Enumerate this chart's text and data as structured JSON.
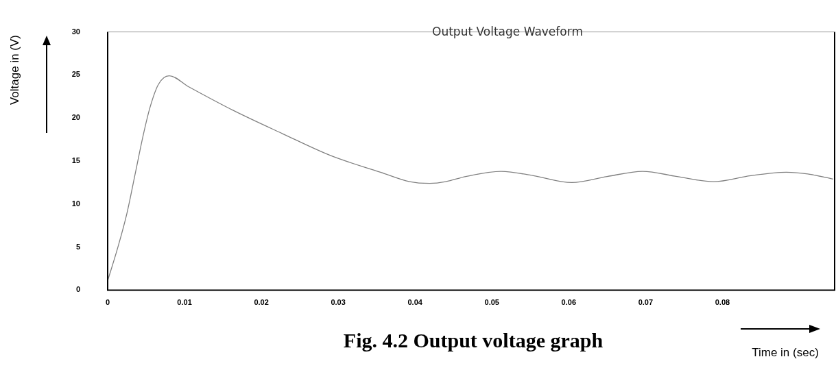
{
  "chart_data": {
    "type": "line",
    "title": "Output Voltage Waveform",
    "xlabel": "Time in (sec)",
    "ylabel": "Voltage in (V)",
    "annotations": [
      "Fig. 4.2 Output voltage graph"
    ],
    "x": [
      0,
      0.0013,
      0.0025,
      0.0036,
      0.0046,
      0.0055,
      0.0066,
      0.008,
      0.0106,
      0.0163,
      0.0227,
      0.0291,
      0.0355,
      0.0393,
      0.0419,
      0.044,
      0.0466,
      0.0512,
      0.0554,
      0.0604,
      0.065,
      0.0696,
      0.0741,
      0.0788,
      0.0837,
      0.0883,
      0.0911,
      0.0944
    ],
    "series": [
      {
        "color": "#808080",
        "values": [
          1.1,
          4.9,
          8.9,
          13.6,
          17.9,
          21.2,
          23.9,
          24.9,
          23.6,
          20.9,
          18.2,
          15.6,
          13.7,
          12.6,
          12.4,
          12.6,
          13.2,
          13.8,
          13.3,
          12.5,
          13.2,
          13.8,
          13.2,
          12.6,
          13.3,
          13.7,
          13.5,
          12.9
        ]
      }
    ],
    "xlim": [
      0,
      0.0946
    ],
    "xticks": [
      0,
      0.01,
      0.02,
      0.03,
      0.04,
      0.05,
      0.06,
      0.07,
      0.08
    ],
    "ylim": [
      0,
      30
    ],
    "yticks": [
      0,
      5,
      10,
      15,
      20,
      25,
      30
    ],
    "grid": false,
    "legend": false,
    "marker": "none",
    "line_style": "solid"
  }
}
